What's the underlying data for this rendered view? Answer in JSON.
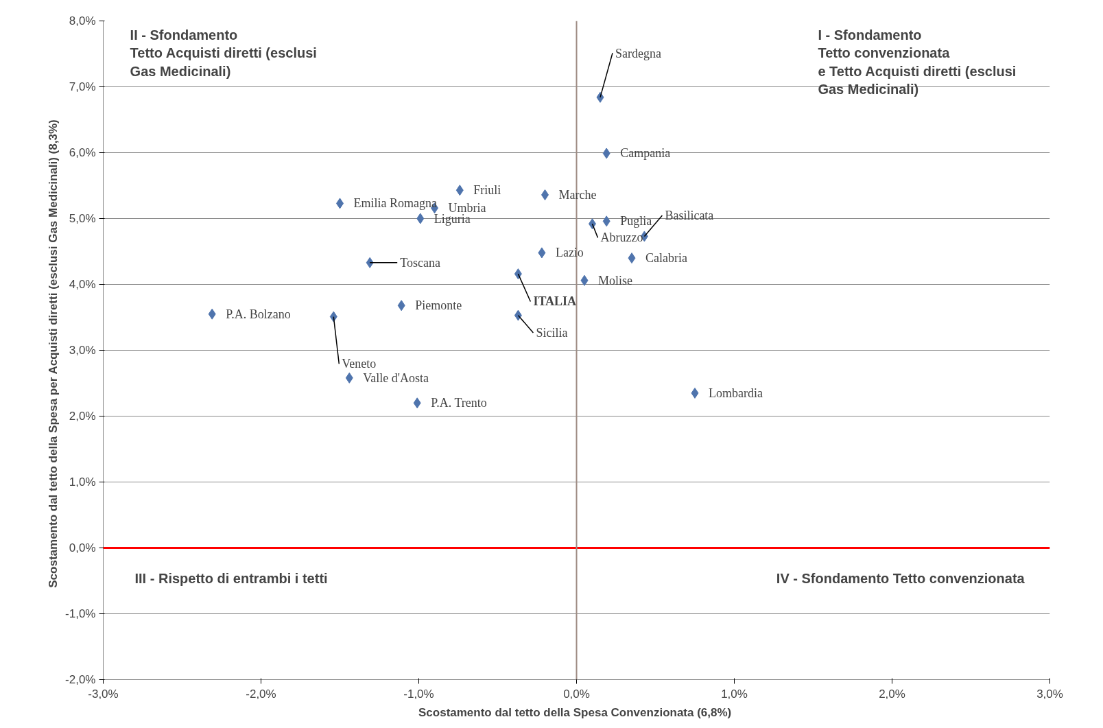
{
  "chart_data": {
    "type": "scatter",
    "xlabel": "Scostamento dal tetto della Spesa Convenzionata  (6,8%)",
    "ylabel": "Scostamento dal tetto della Spesa per Acquisti diretti   (esclusi Gas Medicinali) (8,3%)",
    "x": [
      0.15,
      0.19,
      -0.74,
      -0.2,
      -1.5,
      -0.9,
      -0.99,
      0.1,
      0.19,
      0.43,
      -0.22,
      0.35,
      -1.31,
      -0.37,
      0.05,
      -1.11,
      -2.31,
      -1.54,
      -0.37,
      -1.44,
      -1.01,
      0.75
    ],
    "values": [
      6.84,
      5.99,
      5.43,
      5.36,
      5.23,
      5.16,
      5.0,
      4.92,
      4.96,
      4.73,
      4.48,
      4.4,
      4.33,
      4.16,
      4.06,
      3.68,
      3.55,
      3.51,
      3.53,
      2.58,
      2.2,
      2.35
    ],
    "value_labels": [
      "Sardegna",
      "Campania",
      "Friuli",
      "Marche",
      "Emilia Romagna",
      "Umbria",
      "Liguria",
      "Abruzzo",
      "Puglia",
      "Basilicata",
      "Lazio",
      "Calabria",
      "Toscana",
      "ITALIA",
      "Molise",
      "Piemonte",
      "P.A. Bolzano",
      "Veneto",
      "Sicilia",
      "Valle d'Aosta",
      "P.A. Trento",
      "Lombardia"
    ],
    "color": "#4f74ad",
    "marker": "diamond",
    "grid": "y",
    "legend": false,
    "xlim": [
      -3,
      3
    ],
    "ylim": [
      -2,
      8
    ],
    "xticks": [
      {
        "value": -3,
        "label": "-3,0%"
      },
      {
        "value": -2,
        "label": "-2,0%"
      },
      {
        "value": -1,
        "label": "-1,0%"
      },
      {
        "value": 0,
        "label": "0,0%"
      },
      {
        "value": 1,
        "label": "1,0%"
      },
      {
        "value": 2,
        "label": "2,0%"
      },
      {
        "value": 3,
        "label": "3,0%"
      }
    ],
    "yticks": [
      {
        "value": -2,
        "label": "-2,0%"
      },
      {
        "value": -1,
        "label": "-1,0%"
      },
      {
        "value": 0,
        "label": "0,0%"
      },
      {
        "value": 1,
        "label": "1,0%"
      },
      {
        "value": 2,
        "label": "2,0%"
      },
      {
        "value": 3,
        "label": "3,0%"
      },
      {
        "value": 4,
        "label": "4,0%"
      },
      {
        "value": 5,
        "label": "5,0%"
      },
      {
        "value": 6,
        "label": "6,0%"
      },
      {
        "value": 7,
        "label": "7,0%"
      },
      {
        "value": 8,
        "label": "8,0%"
      }
    ],
    "ref_lines": [
      {
        "axis": "y",
        "value": 0,
        "color": "#ff0000"
      },
      {
        "axis": "x",
        "value": 0,
        "color": "#9e8c84"
      }
    ],
    "annotations": [
      "II - Sfondamento\nTetto Acquisti diretti (esclusi\nGas Medicinali)",
      "I - Sfondamento\nTetto convenzionata\ne Tetto Acquisti diretti (esclusi\nGas Medicinali)",
      "III - Rispetto di entrambi i tetti",
      "IV - Sfondamento Tetto convenzionata"
    ]
  }
}
